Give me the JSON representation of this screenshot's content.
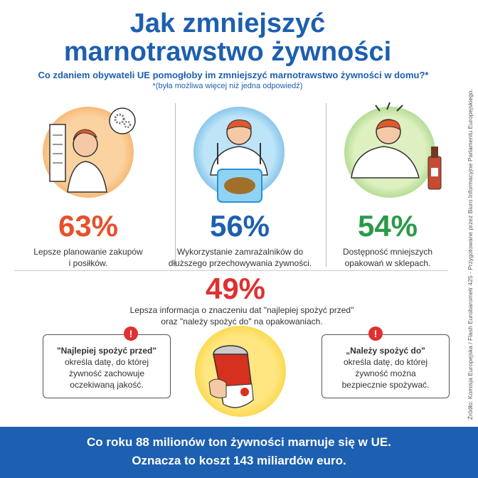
{
  "header": {
    "title_line1": "Jak zmniejszyć",
    "title_line2": "marnotrawstwo żywności",
    "question": "Co zdaniem obywateli UE pomogłoby im zmniejszyć marnotrawstwo żywności w domu?*",
    "note": "*(była możliwa więcej niż jedna odpowiedź)"
  },
  "stats": [
    {
      "percent": "63%",
      "line1": "Lepsze planowanie zakupów",
      "line2": "i posiłków.",
      "color": "#e8502a"
    },
    {
      "percent": "56%",
      "line1": "Wykorzystanie zamrażalników do",
      "line2": "dłuższego przechowywania żywności.",
      "color": "#1d5fb0"
    },
    {
      "percent": "54%",
      "line1": "Dostępność mniejszych",
      "line2": "opakowań w sklepach.",
      "color": "#2a9a4a"
    }
  ],
  "stat4": {
    "percent": "49%",
    "line1": "Lepsza informacja o znaczeniu dat \"najlepiej spożyć przed\"",
    "line2": "oraz \"należy spożyć do\" na opakowaniach.",
    "color": "#e03030"
  },
  "box_left": {
    "heading": "\"Najlepiej spożyć przed\"",
    "line1": "określa datę, do której",
    "line2": "żywność zachowuje",
    "line3": "oczekiwaną jakość."
  },
  "box_right": {
    "heading": "„Należy spożyć do\"",
    "line1": "określa datę, do której",
    "line2": "żywność można",
    "line3": "bezpiecznie spożywać."
  },
  "warn_symbol": "!",
  "footer": {
    "line1": "Co roku 88 milionów ton żywności marnuje się w UE.",
    "line2": "Oznacza to koszt 143 miliardów euro."
  },
  "source": "Źródło: Komisja Europejska / Flash Eurobarometr 425 - Przygotowane przez Biuro Informacyjne Parlamentu Europejskiego."
}
